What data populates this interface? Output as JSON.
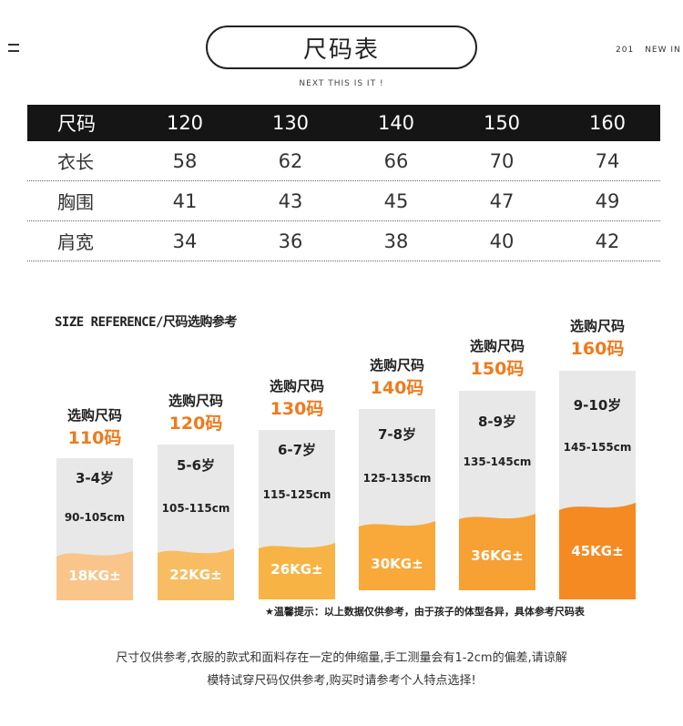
{
  "header": {
    "title": "尺码表",
    "subtitle": "NEXT THIS IS IT !",
    "corner_left": "201",
    "corner_right": "NEW IN"
  },
  "size_table": {
    "header": [
      "尺码",
      "120",
      "130",
      "140",
      "150",
      "160"
    ],
    "rows": [
      [
        "衣长",
        "58",
        "62",
        "66",
        "70",
        "74"
      ],
      [
        "胸围",
        "41",
        "43",
        "45",
        "47",
        "49"
      ],
      [
        "肩宽",
        "34",
        "36",
        "38",
        "40",
        "42"
      ]
    ]
  },
  "reference": {
    "title": "SIZE REFERENCE/尺码选购参考",
    "choose_label": "选购尺码",
    "columns": [
      {
        "size": "110码",
        "age": "3-4岁",
        "height": "90-105cm",
        "weight": "18KG±",
        "color": "#f9c58a"
      },
      {
        "size": "120码",
        "age": "5-6岁",
        "height": "105-115cm",
        "weight": "22KG±",
        "color": "#f8bd62"
      },
      {
        "size": "130码",
        "age": "6-7岁",
        "height": "115-125cm",
        "weight": "26KG±",
        "color": "#f7b444"
      },
      {
        "size": "140码",
        "age": "7-8岁",
        "height": "125-135cm",
        "weight": "30KG±",
        "color": "#f8a93a"
      },
      {
        "size": "150码",
        "age": "8-9岁",
        "height": "135-145cm",
        "weight": "36KG±",
        "color": "#f7a033"
      },
      {
        "size": "160码",
        "age": "9-10岁",
        "height": "145-155cm",
        "weight": "45KG±",
        "color": "#f58a22"
      }
    ],
    "tip": "★温馨提示：以上数据仅供参考，由于孩子的体型各异，具体参考尺码表"
  },
  "note": {
    "line1": "尺寸仅供参考,衣服的款式和面料存在一定的伸缩量,手工测量会有1-2cm的偏差,请谅解",
    "line2": "模特试穿尺码仅供参考,购买时请参考个人特点选择!"
  }
}
